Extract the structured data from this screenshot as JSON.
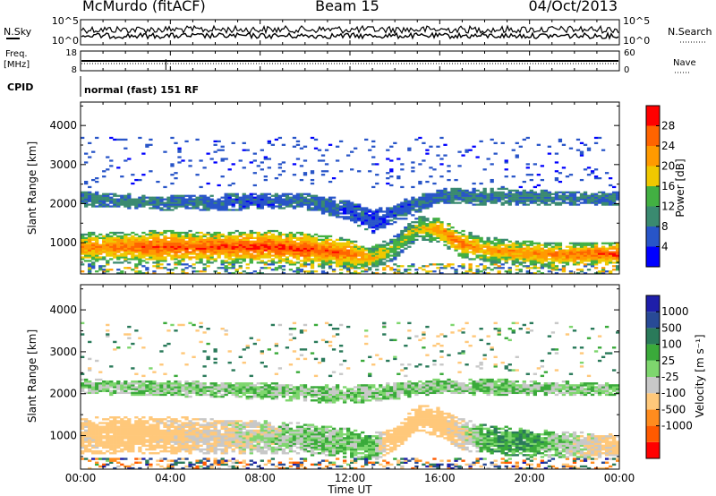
{
  "header": {
    "station": "McMurdo (fitACF)",
    "beam": "Beam 15",
    "date": "04/Oct/2013"
  },
  "noise_panel": {
    "left_label": "N.Sky",
    "right_label": "N.Search",
    "left_ticks": [
      "10^5",
      "10^0"
    ],
    "right_ticks": [
      "10^5",
      "10^0"
    ]
  },
  "freq_panel": {
    "left_label_1": "Freq.",
    "left_label_2": "[MHz]",
    "right_label": "Nave",
    "left_ticks": [
      "18",
      "8"
    ],
    "right_ticks": [
      "60",
      "0"
    ]
  },
  "cpid": {
    "label": "CPID",
    "mode": "normal (fast) 151 RF"
  },
  "x_axis": {
    "label": "Time UT",
    "tick_labels": [
      "00:00",
      "04:00",
      "08:00",
      "12:00",
      "16:00",
      "20:00",
      "00:00"
    ]
  },
  "colors": {
    "power_scale": [
      "#0000ff",
      "#2855c8",
      "#3a8a70",
      "#42b042",
      "#f0c800",
      "#ff9a00",
      "#ff6400",
      "#ff0000"
    ],
    "velocity_scale": [
      "#ff0000",
      "#ff5a00",
      "#ff8c1e",
      "#ffc87a",
      "#c8c8c8",
      "#7ed66e",
      "#3aaa3a",
      "#2a7a5a",
      "#284a96",
      "#1e1eaa"
    ]
  },
  "chart_data": [
    {
      "type": "heatmap",
      "title": "Power",
      "xlabel": "",
      "ylabel": "Slant Range [km]",
      "xlim": [
        0,
        24
      ],
      "ylim": [
        200,
        4600
      ],
      "y_ticks": [
        1000,
        2000,
        3000,
        4000
      ],
      "colorbar": {
        "label": "Power [dB]",
        "ticks": [
          4,
          8,
          12,
          16,
          20,
          24,
          28
        ],
        "range": [
          0,
          32
        ]
      },
      "bands": [
        {
          "name": "main",
          "x": [
            0,
            2,
            4,
            6,
            8,
            10,
            12,
            13,
            14,
            15,
            16,
            17,
            18,
            20,
            22,
            24
          ],
          "center_km": [
            850,
            860,
            880,
            860,
            880,
            820,
            700,
            600,
            850,
            1350,
            1300,
            950,
            800,
            700,
            680,
            700
          ],
          "halfwidth_km": [
            380,
            400,
            420,
            400,
            430,
            420,
            380,
            320,
            300,
            300,
            320,
            350,
            330,
            320,
            300,
            300
          ],
          "power_db": [
            24,
            26,
            27,
            28,
            29,
            28,
            26,
            20,
            16,
            18,
            24,
            26,
            22,
            24,
            26,
            28
          ]
        },
        {
          "name": "upper",
          "x": [
            0,
            2,
            4,
            6,
            8,
            10,
            12,
            13,
            16,
            18,
            20,
            22,
            24
          ],
          "center_km": [
            2100,
            2050,
            2000,
            2000,
            2050,
            2050,
            1800,
            1500,
            2200,
            2150,
            2150,
            2100,
            2100
          ],
          "halfwidth_km": [
            200,
            180,
            200,
            220,
            200,
            220,
            260,
            300,
            200,
            220,
            200,
            180,
            180
          ],
          "power_db": [
            8,
            9,
            8,
            7,
            6,
            8,
            6,
            5,
            8,
            9,
            9,
            8,
            8
          ]
        }
      ]
    },
    {
      "type": "heatmap",
      "title": "Velocity",
      "xlabel": "Time UT",
      "ylabel": "Slant Range [km]",
      "xlim": [
        0,
        24
      ],
      "ylim": [
        200,
        4600
      ],
      "y_ticks": [
        1000,
        2000,
        3000,
        4000
      ],
      "colorbar": {
        "label": "Velocity [m s⁻¹]",
        "ticks": [
          1000,
          500,
          100,
          25,
          -25,
          -100,
          -500,
          -1000
        ]
      },
      "bands": [
        {
          "name": "main",
          "x": [
            0,
            2,
            4,
            6,
            8,
            10,
            12,
            13,
            14,
            15,
            16,
            17,
            18,
            20,
            22,
            24
          ],
          "center_km": [
            950,
            1000,
            1000,
            950,
            950,
            900,
            800,
            700,
            900,
            1400,
            1300,
            1000,
            900,
            800,
            750,
            700
          ],
          "halfwidth_km": [
            450,
            450,
            450,
            420,
            400,
            380,
            350,
            320,
            300,
            320,
            350,
            380,
            350,
            330,
            320,
            300
          ],
          "velocity": [
            -150,
            -200,
            -150,
            -100,
            -50,
            0,
            20,
            50,
            -300,
            -400,
            -200,
            -100,
            50,
            80,
            -50,
            -150
          ]
        },
        {
          "name": "upper",
          "x": [
            0,
            4,
            8,
            12,
            16,
            18,
            20,
            24
          ],
          "center_km": [
            2150,
            2100,
            2050,
            1950,
            2150,
            2150,
            2100,
            2100
          ],
          "halfwidth_km": [
            180,
            180,
            200,
            220,
            180,
            200,
            180,
            160
          ],
          "velocity": [
            0,
            0,
            0,
            0,
            0,
            0,
            0,
            0
          ]
        }
      ]
    }
  ]
}
